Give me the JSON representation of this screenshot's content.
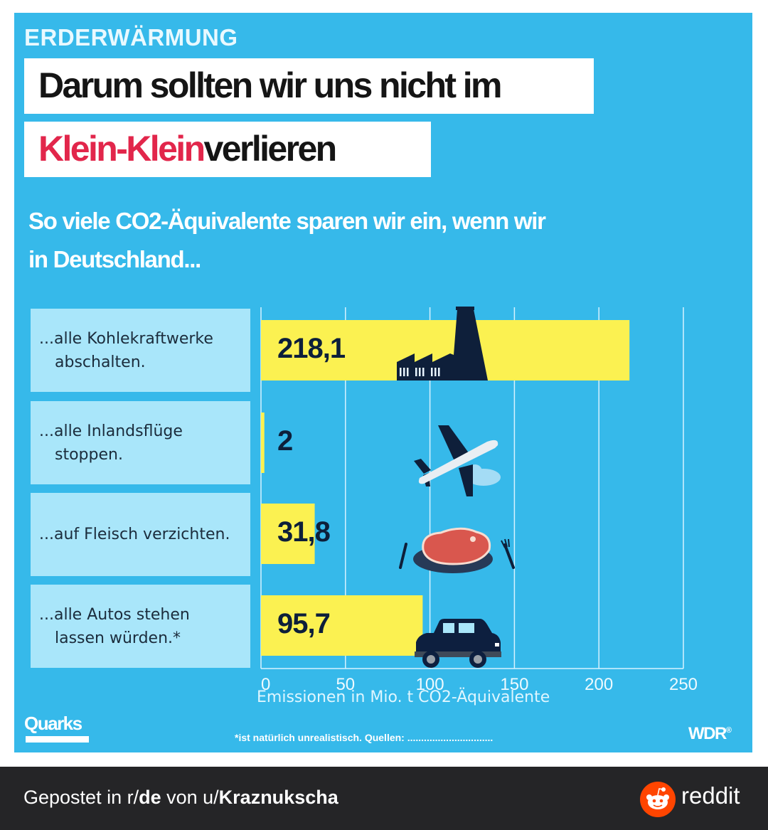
{
  "header": {
    "kicker": "ERDERWÄRMUNG",
    "title_line1": "Darum sollten wir uns nicht im",
    "title_line2_highlight": "Klein-Klein",
    "title_line2_rest": "verlieren",
    "subtitle_line1": "So viele CO2-Äquivalente sparen wir ein, wenn wir",
    "subtitle_line2": "in Deutschland..."
  },
  "colors": {
    "background": "#36b9ea",
    "bar": "#fbf151",
    "label_box": "#a9e6fa",
    "highlight": "#e2264b",
    "icon": "#0e1f3a"
  },
  "chart_data": {
    "type": "bar",
    "orientation": "horizontal",
    "categories": [
      {
        "line1": "...alle Kohlekraftwerke",
        "line2": "abschalten."
      },
      {
        "line1": "...alle Inlandsflüge",
        "line2": "stoppen."
      },
      {
        "line1": "...auf Fleisch verzichten.",
        "line2": ""
      },
      {
        "line1": "...alle Autos stehen",
        "line2": "lassen würden.*"
      }
    ],
    "values": [
      218.1,
      2,
      31.8,
      95.7
    ],
    "value_labels": [
      "218,1",
      "2",
      "31,8",
      "95,7"
    ],
    "icons": [
      "factory-icon",
      "airplane-icon",
      "steak-plate-icon",
      "car-icon"
    ],
    "xlabel": "Emissionen in Mio. t CO2-Äquivalente",
    "xlim": [
      0,
      250
    ],
    "xticks": [
      0,
      50,
      100,
      150,
      200,
      250
    ],
    "xtick_labels": [
      "0",
      "50",
      "100",
      "150",
      "200",
      "250"
    ],
    "grid": true
  },
  "footer": {
    "brand_left": "Quarks",
    "note": "*ist natürlich unrealistisch. Quellen: ...............................",
    "brand_right": "WDR",
    "brand_right_mark": "®"
  },
  "share_bar": {
    "prefix": "Gepostet in r/",
    "subreddit": "de",
    "middle": " von u/",
    "user": "Kraznukscha",
    "brand": "reddit"
  }
}
